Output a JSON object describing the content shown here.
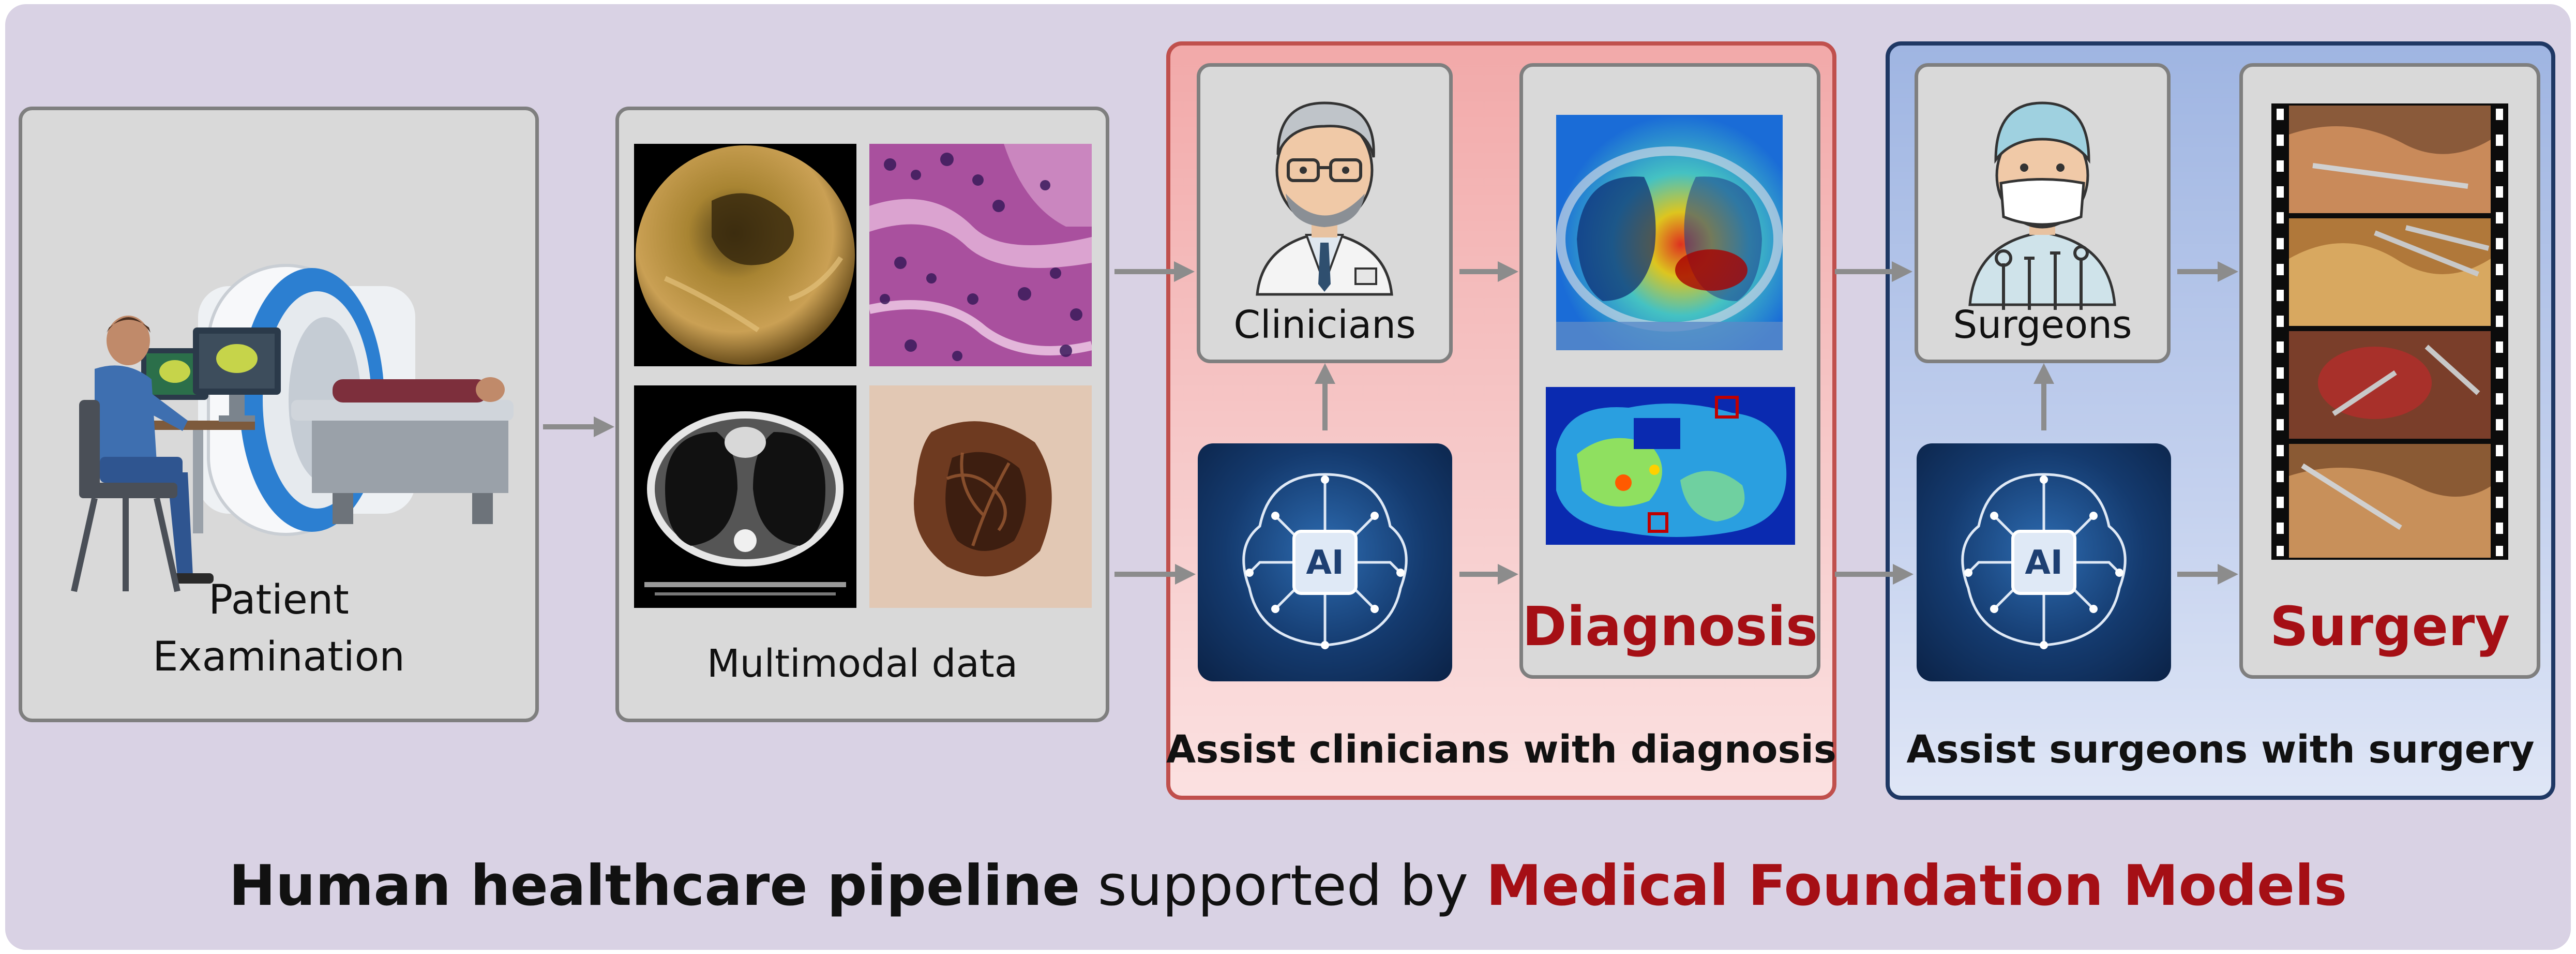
{
  "stages": {
    "patient": {
      "label_line1": "Patient",
      "label_line2": "Examination"
    },
    "multimodal": {
      "label": "Multimodal data"
    },
    "clinicians": {
      "label": "Clinicians"
    },
    "diagnosis": {
      "label": "Diagnosis"
    },
    "surgeons": {
      "label": "Surgeons"
    },
    "surgery": {
      "label": "Surgery"
    }
  },
  "ai_badges": {
    "text": "AI"
  },
  "groups": {
    "diagnosis_group": {
      "caption": "Assist clinicians with diagnosis"
    },
    "surgery_group": {
      "caption": "Assist surgeons with surgery"
    }
  },
  "footer": {
    "part_bold": "Human healthcare pipeline",
    "part_plain": " supported by ",
    "part_red": "Medical Foundation Models"
  },
  "colors": {
    "background": "#d9d2e4",
    "box_fill": "#d9d9d9",
    "box_border": "#7f7f7f",
    "diagnosis_group_fill": "#f3b9b9",
    "diagnosis_group_border": "#c0504d",
    "surgery_group_fill": "#b6c6e8",
    "surgery_group_border": "#1f3864",
    "accent_red": "#a50f15",
    "arrow": "#8c8c8c"
  }
}
